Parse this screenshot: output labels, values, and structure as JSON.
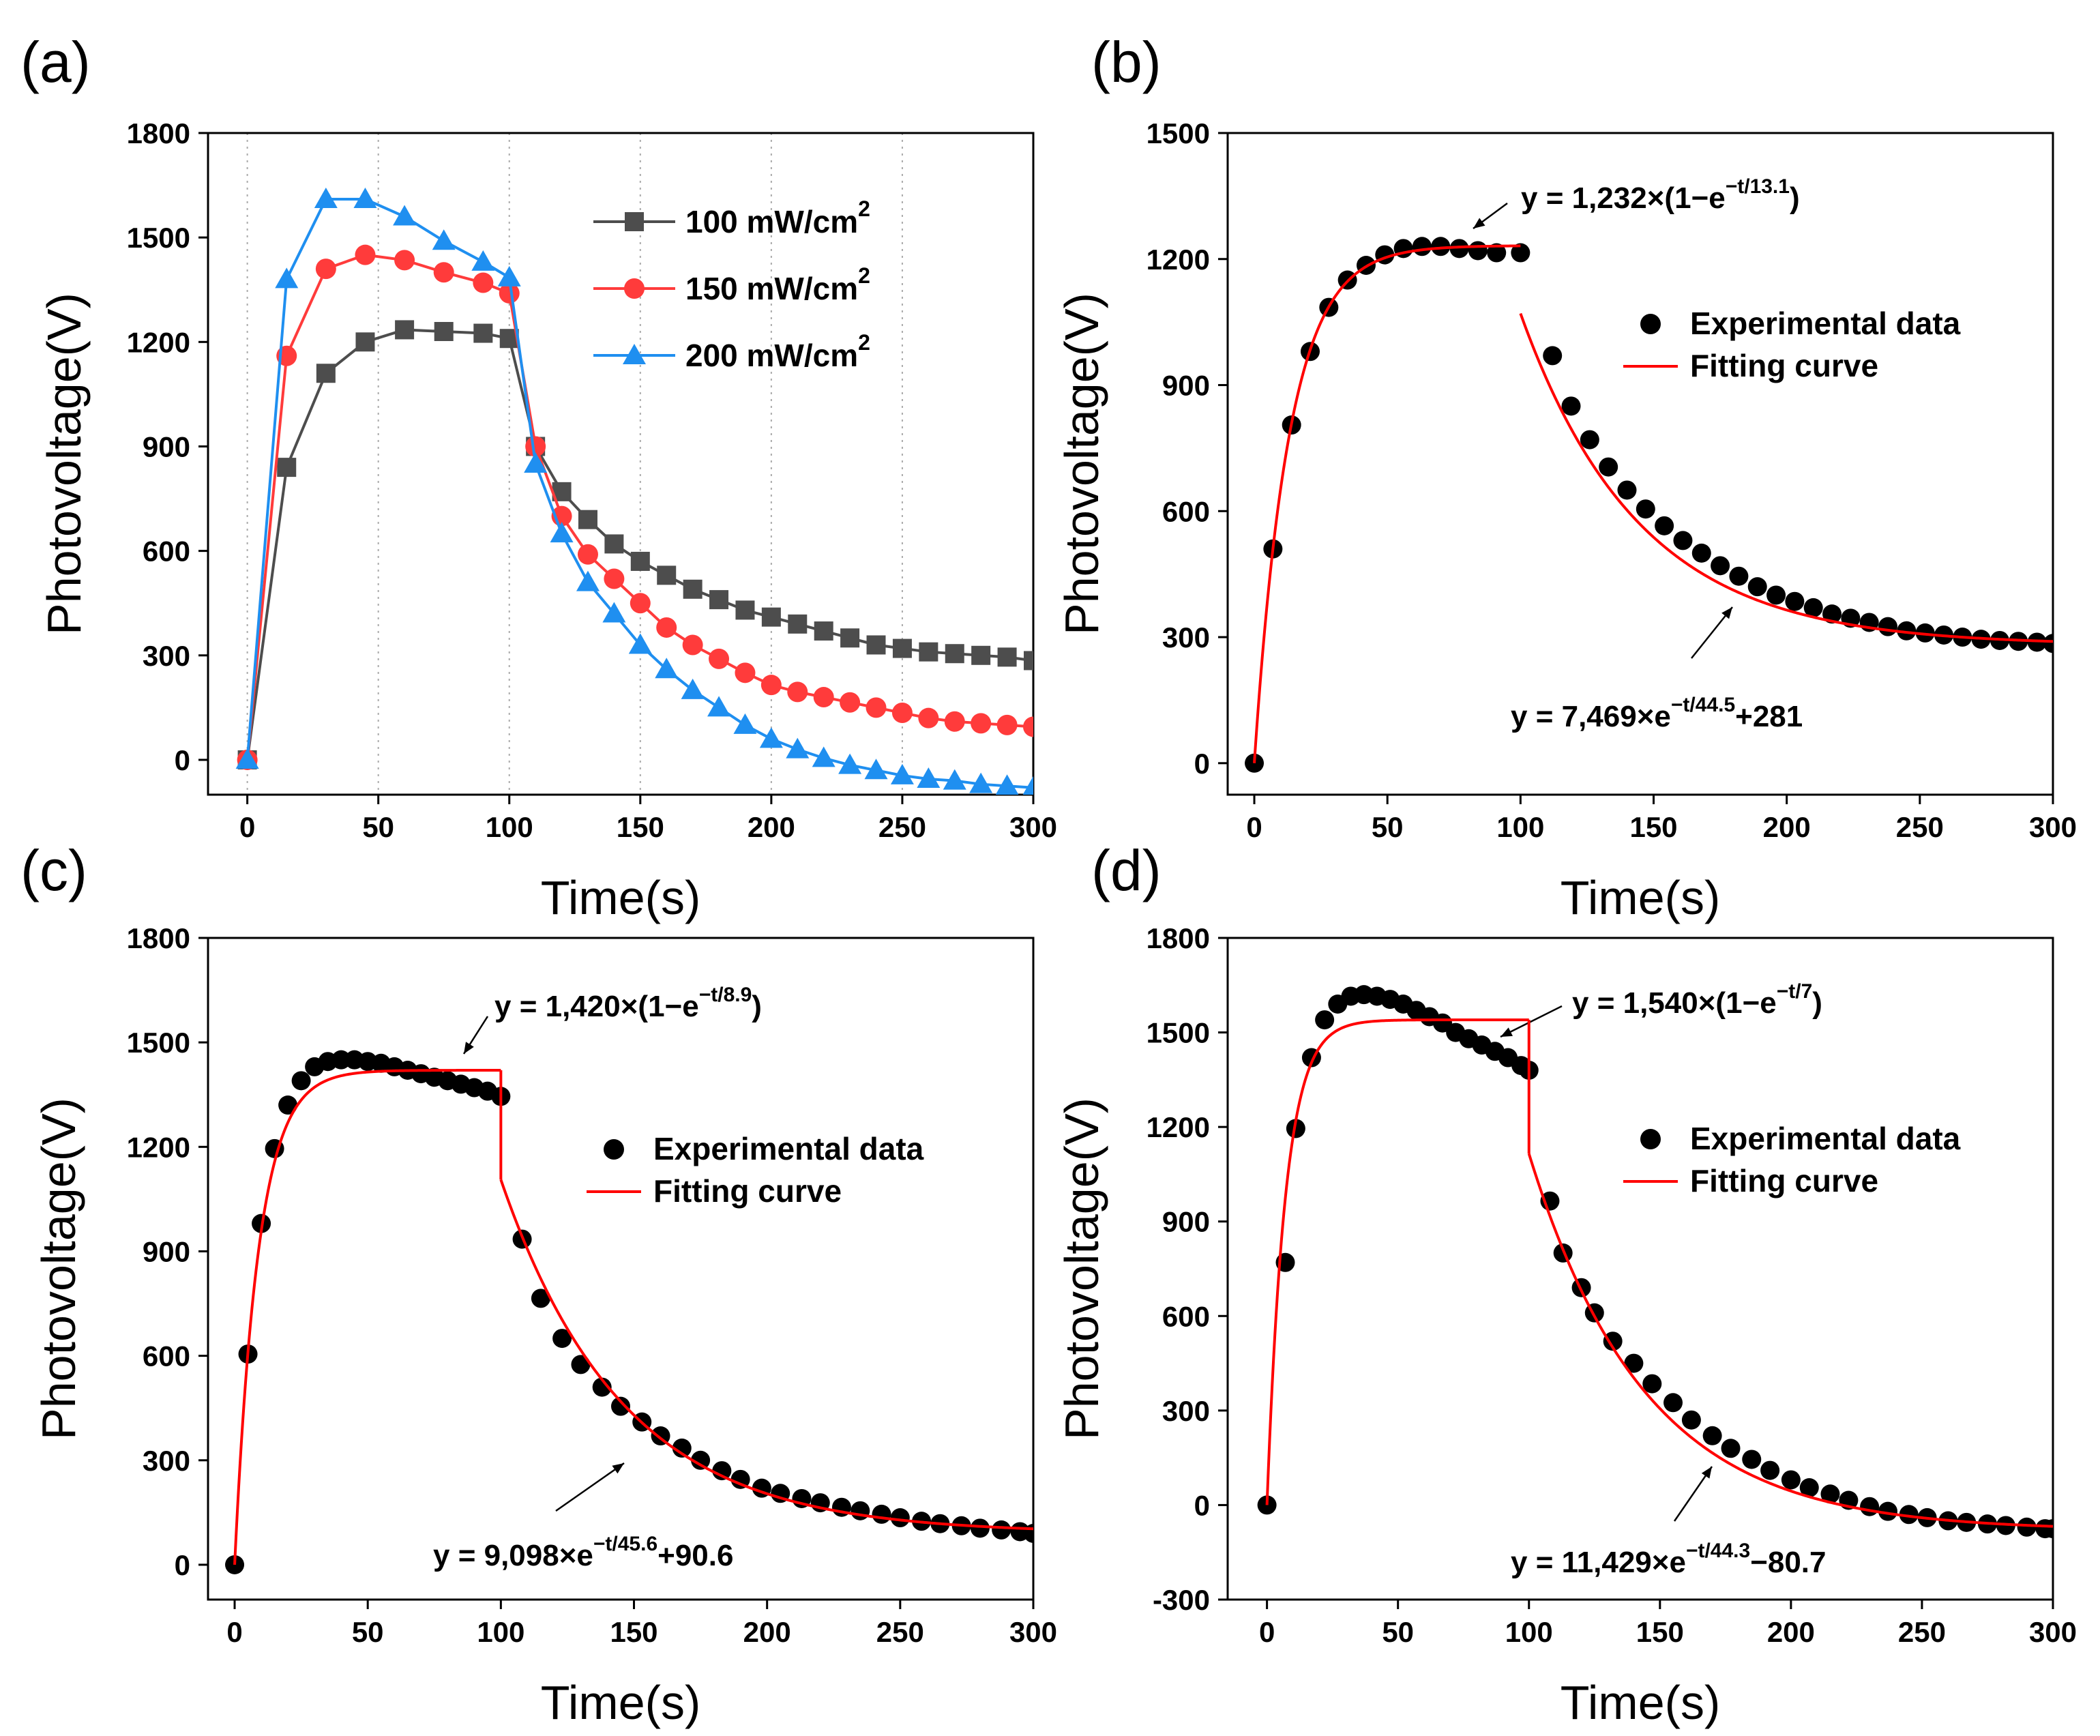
{
  "chart_data": [
    {
      "panel_label": "(a)",
      "type": "line",
      "xlabel": "Time(s)",
      "ylabel": "Photovoltage(V)",
      "xlim": [
        -15,
        300
      ],
      "ylim": [
        -100,
        1800
      ],
      "xticks": [
        0,
        50,
        100,
        150,
        200,
        250,
        300
      ],
      "yticks": [
        0,
        300,
        600,
        900,
        1200,
        1500,
        1800
      ],
      "vertical_gridlines_at": [
        0,
        50,
        100,
        150,
        200,
        250
      ],
      "legend_position": "top-right",
      "series": [
        {
          "name": "100 mW/cm",
          "sup": "2",
          "color": "#4d4d4d",
          "marker": "square",
          "x": [
            0,
            15,
            30,
            45,
            60,
            75,
            90,
            100,
            110,
            120,
            130,
            140,
            150,
            160,
            170,
            180,
            190,
            200,
            210,
            220,
            230,
            240,
            250,
            260,
            270,
            280,
            290,
            300
          ],
          "y": [
            0,
            840,
            1110,
            1200,
            1235,
            1230,
            1225,
            1210,
            900,
            770,
            690,
            620,
            570,
            530,
            490,
            460,
            430,
            410,
            390,
            370,
            350,
            330,
            320,
            310,
            305,
            300,
            295,
            285
          ]
        },
        {
          "name": "150 mW/cm",
          "sup": "2",
          "color": "#ff3b3b",
          "marker": "circle",
          "x": [
            0,
            15,
            30,
            45,
            60,
            75,
            90,
            100,
            110,
            120,
            130,
            140,
            150,
            160,
            170,
            180,
            190,
            200,
            210,
            220,
            230,
            240,
            250,
            260,
            270,
            280,
            290,
            300
          ],
          "y": [
            0,
            1160,
            1410,
            1450,
            1435,
            1400,
            1370,
            1340,
            900,
            700,
            590,
            520,
            450,
            380,
            330,
            290,
            250,
            215,
            195,
            180,
            165,
            150,
            135,
            120,
            110,
            105,
            100,
            95
          ]
        },
        {
          "name": "200 mW/cm",
          "sup": "2",
          "color": "#1f8ff0",
          "marker": "triangle",
          "x": [
            0,
            15,
            30,
            45,
            60,
            75,
            90,
            100,
            110,
            120,
            130,
            140,
            150,
            160,
            170,
            180,
            190,
            200,
            210,
            220,
            230,
            240,
            250,
            260,
            270,
            280,
            290,
            300
          ],
          "y": [
            0,
            1380,
            1610,
            1610,
            1560,
            1490,
            1430,
            1385,
            850,
            650,
            510,
            420,
            330,
            260,
            200,
            150,
            100,
            60,
            30,
            5,
            -15,
            -30,
            -45,
            -55,
            -60,
            -70,
            -75,
            -80
          ]
        }
      ]
    },
    {
      "panel_label": "(b)",
      "type": "scatter",
      "xlabel": "Time(s)",
      "ylabel": "Photovoltage(V)",
      "xlim": [
        -10,
        300
      ],
      "ylim": [
        -75,
        1500
      ],
      "xticks": [
        0,
        50,
        100,
        150,
        200,
        250,
        300
      ],
      "yticks": [
        0,
        300,
        600,
        900,
        1200,
        1500
      ],
      "legend": [
        "Experimental data",
        "Fitting curve"
      ],
      "legend_position": "center-right",
      "data_x": [
        0,
        7,
        14,
        21,
        28,
        35,
        42,
        49,
        56,
        63,
        70,
        77,
        84,
        91,
        100,
        112,
        119,
        126,
        133,
        140,
        147,
        154,
        161,
        168,
        175,
        182,
        189,
        196,
        203,
        210,
        217,
        224,
        231,
        238,
        245,
        252,
        259,
        266,
        273,
        280,
        287,
        294,
        300
      ],
      "data_y": [
        0,
        510,
        805,
        980,
        1085,
        1150,
        1185,
        1210,
        1225,
        1230,
        1230,
        1225,
        1220,
        1215,
        1215,
        970,
        850,
        770,
        705,
        650,
        605,
        565,
        530,
        500,
        470,
        445,
        420,
        400,
        385,
        370,
        355,
        345,
        335,
        325,
        315,
        310,
        305,
        300,
        295,
        292,
        290,
        288,
        285
      ],
      "fit_rise": {
        "A": 1232,
        "tau": 13.1,
        "c": 0,
        "t_start": 0,
        "t_end": 100
      },
      "fit_decay": {
        "A": 7469,
        "tau": 44.5,
        "c": 281,
        "t_start": 100,
        "t_end": 300
      },
      "annotations": [
        {
          "main": "y = 1,232×(1−e",
          "sup": "−t/13.1",
          "tail": ")"
        },
        {
          "main": "y = 7,469×e",
          "sup": "−t/44.5",
          "tail": "+281"
        }
      ]
    },
    {
      "panel_label": "(c)",
      "type": "scatter",
      "xlabel": "Time(s)",
      "ylabel": "Photovoltage(V)",
      "xlim": [
        -10,
        300
      ],
      "ylim": [
        -100,
        1800
      ],
      "xticks": [
        0,
        50,
        100,
        150,
        200,
        250,
        300
      ],
      "yticks": [
        0,
        300,
        600,
        900,
        1200,
        1500,
        1800
      ],
      "legend": [
        "Experimental data",
        "Fitting curve"
      ],
      "legend_position": "center-right",
      "data_x": [
        0,
        5,
        10,
        15,
        20,
        25,
        30,
        35,
        40,
        45,
        50,
        55,
        60,
        65,
        70,
        75,
        80,
        85,
        90,
        95,
        100,
        108,
        115,
        123,
        130,
        138,
        145,
        153,
        160,
        168,
        175,
        183,
        190,
        198,
        205,
        213,
        220,
        228,
        235,
        243,
        250,
        258,
        265,
        273,
        280,
        288,
        295,
        300
      ],
      "data_y": [
        0,
        605,
        980,
        1195,
        1320,
        1390,
        1430,
        1445,
        1450,
        1450,
        1445,
        1440,
        1430,
        1420,
        1410,
        1400,
        1390,
        1380,
        1370,
        1360,
        1345,
        935,
        765,
        650,
        575,
        510,
        455,
        410,
        370,
        335,
        300,
        270,
        245,
        220,
        205,
        190,
        178,
        165,
        155,
        145,
        135,
        125,
        118,
        112,
        105,
        100,
        95,
        90
      ],
      "fit_rise": {
        "A": 1420,
        "tau": 8.9,
        "c": 0,
        "t_start": 0,
        "t_end": 100
      },
      "fit_decay": {
        "A": 9098,
        "tau": 45.6,
        "c": 90.6,
        "t_start": 100,
        "t_end": 300
      },
      "annotations": [
        {
          "main": "y = 1,420×(1−e",
          "sup": "−t/8.9",
          "tail": ")"
        },
        {
          "main": "y = 9,098×e",
          "sup": "−t/45.6",
          "tail": "+90.6"
        }
      ]
    },
    {
      "panel_label": "(d)",
      "type": "scatter",
      "xlabel": "Time(s)",
      "ylabel": "Photovoltage(V)",
      "xlim": [
        -15,
        300
      ],
      "ylim": [
        -300,
        1800
      ],
      "xticks": [
        0,
        50,
        100,
        150,
        200,
        250,
        300
      ],
      "yticks": [
        -300,
        0,
        300,
        600,
        900,
        1200,
        1500,
        1800
      ],
      "legend": [
        "Experimental data",
        "Fitting curve"
      ],
      "legend_position": "center-right",
      "data_x": [
        0,
        7,
        11,
        17,
        22,
        27,
        32,
        37,
        42,
        47,
        52,
        57,
        62,
        67,
        72,
        77,
        82,
        87,
        92,
        97,
        100,
        108,
        113,
        120,
        125,
        132,
        140,
        147,
        155,
        162,
        170,
        177,
        185,
        192,
        200,
        207,
        215,
        222,
        230,
        237,
        245,
        252,
        260,
        267,
        275,
        282,
        290,
        297,
        300
      ],
      "data_y": [
        0,
        770,
        1195,
        1420,
        1540,
        1590,
        1615,
        1620,
        1615,
        1605,
        1590,
        1570,
        1550,
        1530,
        1500,
        1480,
        1460,
        1440,
        1420,
        1395,
        1380,
        965,
        800,
        690,
        610,
        520,
        450,
        385,
        325,
        270,
        220,
        180,
        145,
        110,
        80,
        55,
        35,
        15,
        -5,
        -20,
        -30,
        -40,
        -50,
        -55,
        -60,
        -65,
        -70,
        -75,
        -75
      ],
      "fit_rise": {
        "A": 1540,
        "tau": 7,
        "c": 0,
        "t_start": 0,
        "t_end": 100
      },
      "fit_decay": {
        "A": 11429,
        "tau": 44.3,
        "c": -80.7,
        "t_start": 100,
        "t_end": 300
      },
      "annotations": [
        {
          "main": "y = 1,540×(1−e",
          "sup": "−t/7",
          "tail": ")"
        },
        {
          "main": "y = 11,429×e",
          "sup": "−t/44.3",
          "tail": "−80.7"
        }
      ]
    }
  ]
}
